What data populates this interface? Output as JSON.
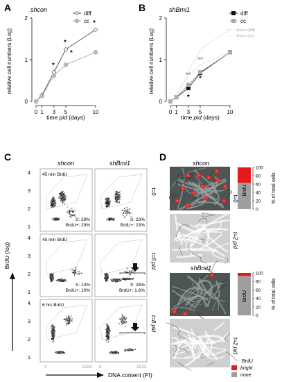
{
  "panels": {
    "A": {
      "letter": "A",
      "title": "shcon",
      "ylabel": "relative cell numbers (Log)",
      "xlabel": "time pid (days)",
      "xlabel_plain": "time ",
      "xlabel_italic": "pid",
      "xlabel_tail": " (days)",
      "legend": [
        "diff",
        "cc"
      ],
      "star_marks": [
        "*",
        "*",
        "*",
        "*"
      ]
    },
    "B": {
      "letter": "B",
      "title": "shBmi1",
      "ylabel": "relative cell numbers (Log)",
      "xlabel_plain": "time ",
      "xlabel_italic": "pid",
      "xlabel_tail": " (days)",
      "legend": [
        "diff",
        "cc",
        "shcon (diff)",
        "shcon (cc)"
      ],
      "star_marks": [
        "**",
        "**",
        "*",
        "*"
      ]
    },
    "C": {
      "letter": "C",
      "col_headers": [
        "shcon",
        "shBmi1"
      ],
      "row_labels": [
        "45 min BrdU",
        "45 min BrdU",
        "6 hrs BrdU"
      ],
      "right_labels": [
        "t=0",
        "t=6 pid",
        "t=8 pid"
      ],
      "stats": [
        {
          "s": "S: 29%",
          "b": "BrdU+: 29%"
        },
        {
          "s": "S: 23%",
          "b": "BrdU+: 23%"
        },
        {
          "s": "S: 13%",
          "b": "BrdU+: 10%"
        },
        {
          "s": "S: 28%",
          "b": "BrdU+: 1.6%"
        }
      ],
      "yticks": [
        "4",
        "3",
        "2",
        "1"
      ],
      "xticks": [
        "0",
        "1023"
      ],
      "ylabel": "BrdU (log)",
      "xlabel": "DNA content (PI)"
    },
    "D": {
      "letter": "D",
      "headers": [
        "shcon",
        "shBmi1"
      ],
      "row_labels": [
        "t=0",
        "t=2 pid",
        "t=2 pid"
      ],
      "bar_ylabel": "% of total cells",
      "bar_inner_label": "BrdU",
      "bar_ticks": [
        "100",
        "80",
        "60",
        "40",
        "20",
        "0"
      ],
      "legend_title": "BrdU",
      "legend_items": [
        "bright",
        "none"
      ]
    }
  },
  "chart_data": [
    {
      "type": "line",
      "title": "shcon",
      "xlabel": "time pid (days)",
      "ylabel": "relative cell numbers (Log)",
      "x": [
        0,
        1,
        3,
        5,
        10
      ],
      "xlim": [
        0,
        10
      ],
      "ylim": [
        0,
        2
      ],
      "yticks": [
        0,
        1,
        2
      ],
      "series": [
        {
          "name": "diff",
          "values": [
            0.0,
            0.15,
            0.7,
            1.25,
            1.72
          ]
        },
        {
          "name": "cc",
          "values": [
            0.0,
            0.13,
            0.62,
            0.88,
            1.18
          ]
        }
      ]
    },
    {
      "type": "line",
      "title": "shBmi1",
      "xlabel": "time pid (days)",
      "ylabel": "relative cell numbers (Log)",
      "x": [
        0,
        1,
        3,
        5,
        10
      ],
      "xlim": [
        0,
        10
      ],
      "ylim": [
        0,
        2
      ],
      "yticks": [
        0,
        1,
        2
      ],
      "series": [
        {
          "name": "diff",
          "values": [
            0.0,
            0.1,
            0.32,
            0.68,
            1.18
          ]
        },
        {
          "name": "cc",
          "values": [
            0.0,
            0.1,
            0.4,
            0.7,
            1.18
          ]
        },
        {
          "name": "shcon (diff)",
          "values": [
            0.0,
            0.15,
            0.7,
            1.25,
            1.72
          ]
        },
        {
          "name": "shcon (cc)",
          "values": [
            0.0,
            0.13,
            0.62,
            0.88,
            1.18
          ]
        }
      ]
    },
    {
      "type": "bar",
      "title": "shcon t=0",
      "ylabel": "% of total cells",
      "ylim": [
        0,
        100
      ],
      "categories": [
        "BrdU"
      ],
      "series": [
        {
          "name": "none",
          "values": [
            63
          ]
        },
        {
          "name": "bright",
          "values": [
            37
          ]
        }
      ]
    },
    {
      "type": "bar",
      "title": "shBmi1 t=0",
      "ylabel": "% of total cells",
      "ylim": [
        0,
        100
      ],
      "categories": [
        "BrdU"
      ],
      "series": [
        {
          "name": "none",
          "values": [
            93
          ]
        },
        {
          "name": "bright",
          "values": [
            7
          ]
        }
      ]
    }
  ],
  "colors": {
    "diff": "#333333",
    "cc": "#aaaaaa",
    "shcon_ref": "#cccccc",
    "bright": "#e31b1b",
    "none": "#9e9e9e"
  }
}
